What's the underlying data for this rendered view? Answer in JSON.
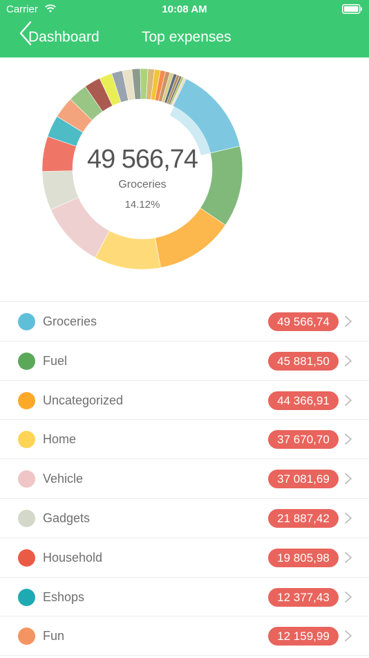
{
  "status_bar": {
    "carrier": "Carrier",
    "time": "10:08 AM"
  },
  "nav": {
    "back_label": "Dashboard",
    "title": "Top expenses"
  },
  "summary": {
    "value": "49 566,74",
    "category": "Groceries",
    "percent": "14.12%"
  },
  "chart_data": {
    "type": "pie",
    "variant": "donut",
    "selected_index": 0,
    "slices": [
      {
        "label": "Groceries",
        "value": 49566.74,
        "color": "#7dc8e0"
      },
      {
        "label": "Fuel",
        "value": 45881.5,
        "color": "#80b97a"
      },
      {
        "label": "Uncategorized",
        "value": 44366.91,
        "color": "#fcb84d"
      },
      {
        "label": "Home",
        "value": 37670.7,
        "color": "#fedb78"
      },
      {
        "label": "Vehicle",
        "value": 37081.69,
        "color": "#efd0d0"
      },
      {
        "label": "Gadgets",
        "value": 21887.42,
        "color": "#dcdfd2"
      },
      {
        "label": "Household",
        "value": 19805.98,
        "color": "#ef7667"
      },
      {
        "label": "Eshops",
        "value": 12377.43,
        "color": "#4dbcc5"
      },
      {
        "label": "Fun",
        "value": 12159.99,
        "color": "#f4a47c"
      },
      {
        "value": 10900,
        "color": "#99c585"
      },
      {
        "value": 9200,
        "color": "#ab5a4f"
      },
      {
        "value": 7300,
        "color": "#e9ee57"
      },
      {
        "value": 6100,
        "color": "#9aa3b0"
      },
      {
        "value": 5400,
        "color": "#e9e1c7"
      },
      {
        "value": 4700,
        "color": "#8c9b8e"
      },
      {
        "value": 4300,
        "color": "#a9d47a"
      },
      {
        "value": 3700,
        "color": "#d8b77e"
      },
      {
        "value": 3300,
        "color": "#f4c435"
      },
      {
        "value": 2900,
        "color": "#f78a4c"
      },
      {
        "value": 2600,
        "color": "#c7956a"
      },
      {
        "value": 2200,
        "color": "#d8cd83"
      },
      {
        "value": 1900,
        "color": "#5e6e80"
      },
      {
        "value": 1600,
        "color": "#b38d5a"
      },
      {
        "value": 1300,
        "color": "#7a7a7a"
      },
      {
        "value": 1100,
        "color": "#a9c44b"
      },
      {
        "value": 900,
        "color": "#d9d9d9"
      },
      {
        "value": 700,
        "color": "#e7c9a4"
      }
    ]
  },
  "list": [
    {
      "label": "Groceries",
      "amount": "49 566,74",
      "color": "#5fbfd8"
    },
    {
      "label": "Fuel",
      "amount": "45 881,50",
      "color": "#5ca85a"
    },
    {
      "label": "Uncategorized",
      "amount": "44 366,91",
      "color": "#fca92a"
    },
    {
      "label": "Home",
      "amount": "37 670,70",
      "color": "#fed456"
    },
    {
      "label": "Vehicle",
      "amount": "37 081,69",
      "color": "#efc5c5"
    },
    {
      "label": "Gadgets",
      "amount": "21 887,42",
      "color": "#d3d8c8"
    },
    {
      "label": "Household",
      "amount": "19 805,98",
      "color": "#eb5a44"
    },
    {
      "label": "Eshops",
      "amount": "12 377,43",
      "color": "#1eaab3"
    },
    {
      "label": "Fun",
      "amount": "12 159,99",
      "color": "#f49462"
    }
  ],
  "theme": {
    "accent": "#3cc974",
    "badge": "#e8645c"
  },
  "icons": {
    "back": "chevron-left-icon",
    "row": "chevron-right-icon",
    "wifi": "wifi-icon",
    "battery": "battery-icon"
  }
}
